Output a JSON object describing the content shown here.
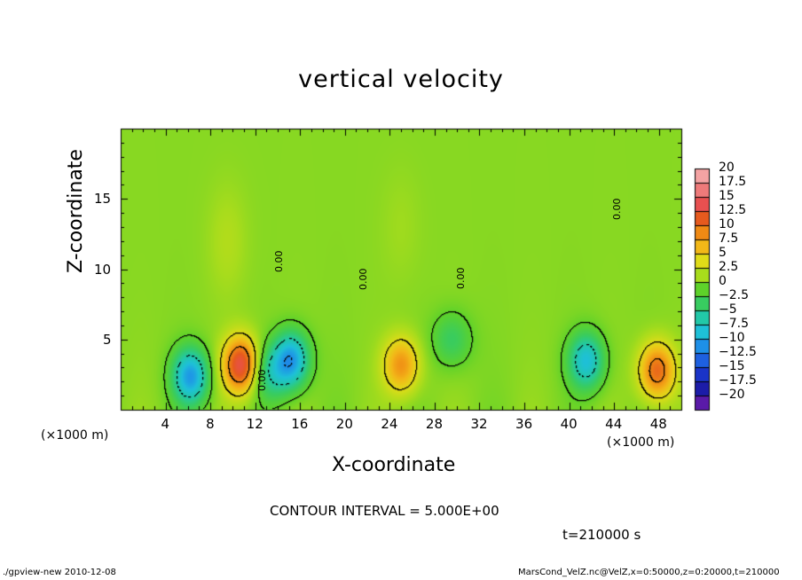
{
  "chart_data": {
    "type": "heatmap",
    "title": "vertical velocity",
    "xlabel": "X-coordinate",
    "ylabel": "Z-coordinate",
    "x_unit_label": "(×1000 m)",
    "y_unit_label": "(×1000 m)",
    "x_ticks": [
      4,
      8,
      12,
      16,
      20,
      24,
      28,
      32,
      36,
      40,
      44,
      48
    ],
    "y_ticks": [
      5,
      10,
      15
    ],
    "xlim": [
      0,
      50
    ],
    "ylim": [
      0,
      20
    ],
    "colorbar": {
      "levels": [
        "20",
        "17.5",
        "15",
        "12.5",
        "10",
        "7.5",
        "5",
        "2.5",
        "0",
        "-2.5",
        "-5",
        "-7.5",
        "-10",
        "-12.5",
        "-15",
        "-17.5",
        "-20"
      ],
      "colors": [
        "#f4a3a3",
        "#ee7a7a",
        "#e85050",
        "#e65a1e",
        "#f08a14",
        "#f2b818",
        "#e0dc18",
        "#a8dc1c",
        "#5ed22a",
        "#38cc60",
        "#22c8a8",
        "#1ec0d8",
        "#1e90e8",
        "#1e60e0",
        "#1a34c8",
        "#1c1ca8",
        "#5a1aa8"
      ]
    },
    "features": [
      {
        "x": 6.2,
        "z": 2.4,
        "value": -10.8
      },
      {
        "x": 10.7,
        "z": 3.2,
        "value": 13.5
      },
      {
        "x": 13.2,
        "z": 2.6,
        "value": -5.5
      },
      {
        "x": 15.2,
        "z": 3.6,
        "value": -10.5
      },
      {
        "x": 25.0,
        "z": 3.2,
        "value": 8.2
      },
      {
        "x": 29.5,
        "z": 5.0,
        "value": -4.0
      },
      {
        "x": 41.5,
        "z": 3.5,
        "value": -8.8
      },
      {
        "x": 47.8,
        "z": 2.8,
        "value": 10.5
      },
      {
        "x": 9.5,
        "z": 12.0,
        "value": 1.5
      },
      {
        "x": 25.0,
        "z": 13.0,
        "value": 0.8
      }
    ],
    "contour_labels": [
      "0.00",
      "0.00",
      "0.00",
      "0.00",
      "0.00"
    ],
    "contour_interval_text": "CONTOUR INTERVAL = 5.000E+00",
    "time_text": "t=210000 s"
  },
  "footer": {
    "left": "./gpview-new  2010-12-08",
    "right": "MarsCond_VelZ.nc@VelZ,x=0:50000,z=0:20000,t=210000"
  }
}
